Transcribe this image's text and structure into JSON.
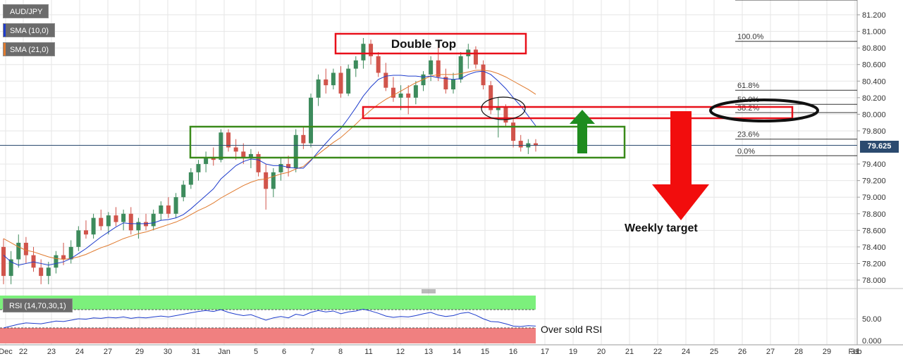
{
  "legend": {
    "symbol": "AUD/JPY",
    "sma10": "SMA (10,0)",
    "sma21": "SMA (21,0)",
    "sma10_color": "#1e3ccc",
    "sma21_color": "#e07a2e"
  },
  "current_price": "79.625",
  "annotations": {
    "double_top": "Double Top",
    "weekly_target": "Weekly target",
    "oversold": "Over sold RSI"
  },
  "fib_levels": [
    {
      "label": "100.0%",
      "value": 80.88
    },
    {
      "label": "61.8%",
      "value": 80.29
    },
    {
      "label": "50.0%",
      "value": 80.12
    },
    {
      "label": "38.2%",
      "value": 80.02
    },
    {
      "label": "23.6%",
      "value": 79.7
    },
    {
      "label": "0.0%",
      "value": 79.5
    }
  ],
  "rsi": {
    "label": "RSI (14,70,30,1)",
    "ticks": [
      "50.00",
      "0.000"
    ],
    "overbought_color": "#7cf07c",
    "oversold_color": "#f08080",
    "line_color": "#1e3ccc"
  },
  "chart_data": {
    "type": "candlestick",
    "y_axis": {
      "ticks": [
        "81.200",
        "81.000",
        "80.800",
        "80.600",
        "80.400",
        "80.200",
        "80.000",
        "79.800",
        "79.400",
        "79.200",
        "79.000",
        "78.800",
        "78.600",
        "78.400",
        "78.200",
        "78.000"
      ],
      "range": [
        77.9,
        81.4
      ]
    },
    "x_axis": {
      "ticks": [
        "Dec",
        "22",
        "23",
        "24",
        "27",
        "29",
        "30",
        "31",
        "Jan",
        "5",
        "6",
        "7",
        "8",
        "11",
        "12",
        "13",
        "14",
        "15",
        "16",
        "17",
        "19",
        "20",
        "21",
        "22",
        "24",
        "25",
        "26",
        "27",
        "28",
        "29",
        "31",
        "Feb"
      ]
    },
    "candles": [
      {
        "o": 78.4,
        "h": 78.5,
        "l": 77.95,
        "c": 78.05
      },
      {
        "o": 78.05,
        "h": 78.35,
        "l": 77.95,
        "c": 78.25
      },
      {
        "o": 78.25,
        "h": 78.55,
        "l": 78.15,
        "c": 78.45
      },
      {
        "o": 78.45,
        "h": 78.52,
        "l": 78.2,
        "c": 78.3
      },
      {
        "o": 78.3,
        "h": 78.4,
        "l": 78.1,
        "c": 78.15
      },
      {
        "o": 78.15,
        "h": 78.25,
        "l": 77.95,
        "c": 78.05
      },
      {
        "o": 78.05,
        "h": 78.22,
        "l": 77.95,
        "c": 78.15
      },
      {
        "o": 78.15,
        "h": 78.35,
        "l": 78.08,
        "c": 78.3
      },
      {
        "o": 78.3,
        "h": 78.45,
        "l": 78.18,
        "c": 78.25
      },
      {
        "o": 78.25,
        "h": 78.48,
        "l": 78.2,
        "c": 78.4
      },
      {
        "o": 78.4,
        "h": 78.65,
        "l": 78.35,
        "c": 78.6
      },
      {
        "o": 78.6,
        "h": 78.72,
        "l": 78.5,
        "c": 78.55
      },
      {
        "o": 78.55,
        "h": 78.8,
        "l": 78.5,
        "c": 78.75
      },
      {
        "o": 78.75,
        "h": 78.85,
        "l": 78.6,
        "c": 78.65
      },
      {
        "o": 78.65,
        "h": 78.82,
        "l": 78.55,
        "c": 78.78
      },
      {
        "o": 78.78,
        "h": 78.88,
        "l": 78.65,
        "c": 78.7
      },
      {
        "o": 78.7,
        "h": 78.85,
        "l": 78.6,
        "c": 78.8
      },
      {
        "o": 78.8,
        "h": 78.88,
        "l": 78.55,
        "c": 78.6
      },
      {
        "o": 78.6,
        "h": 78.75,
        "l": 78.5,
        "c": 78.7
      },
      {
        "o": 78.7,
        "h": 78.8,
        "l": 78.6,
        "c": 78.65
      },
      {
        "o": 78.65,
        "h": 78.85,
        "l": 78.6,
        "c": 78.8
      },
      {
        "o": 78.8,
        "h": 78.95,
        "l": 78.72,
        "c": 78.9
      },
      {
        "o": 78.9,
        "h": 79.0,
        "l": 78.75,
        "c": 78.8
      },
      {
        "o": 78.8,
        "h": 79.05,
        "l": 78.75,
        "c": 79.0
      },
      {
        "o": 79.0,
        "h": 79.2,
        "l": 78.95,
        "c": 79.15
      },
      {
        "o": 79.15,
        "h": 79.35,
        "l": 79.1,
        "c": 79.3
      },
      {
        "o": 79.3,
        "h": 79.45,
        "l": 79.2,
        "c": 79.4
      },
      {
        "o": 79.4,
        "h": 79.55,
        "l": 79.3,
        "c": 79.48
      },
      {
        "o": 79.48,
        "h": 79.6,
        "l": 79.38,
        "c": 79.45
      },
      {
        "o": 79.45,
        "h": 79.82,
        "l": 79.42,
        "c": 79.78
      },
      {
        "o": 79.78,
        "h": 79.82,
        "l": 79.55,
        "c": 79.6
      },
      {
        "o": 79.6,
        "h": 79.7,
        "l": 79.45,
        "c": 79.55
      },
      {
        "o": 79.55,
        "h": 79.65,
        "l": 79.4,
        "c": 79.48
      },
      {
        "o": 79.48,
        "h": 79.58,
        "l": 79.35,
        "c": 79.52
      },
      {
        "o": 79.52,
        "h": 79.55,
        "l": 79.25,
        "c": 79.3
      },
      {
        "o": 79.3,
        "h": 79.4,
        "l": 78.85,
        "c": 79.1
      },
      {
        "o": 79.1,
        "h": 79.35,
        "l": 79.0,
        "c": 79.3
      },
      {
        "o": 79.3,
        "h": 79.48,
        "l": 79.2,
        "c": 79.4
      },
      {
        "o": 79.4,
        "h": 79.5,
        "l": 79.25,
        "c": 79.35
      },
      {
        "o": 79.35,
        "h": 79.82,
        "l": 79.3,
        "c": 79.75
      },
      {
        "o": 79.75,
        "h": 79.85,
        "l": 79.58,
        "c": 79.65
      },
      {
        "o": 79.65,
        "h": 80.25,
        "l": 79.6,
        "c": 80.2
      },
      {
        "o": 80.2,
        "h": 80.48,
        "l": 80.1,
        "c": 80.42
      },
      {
        "o": 80.42,
        "h": 80.55,
        "l": 80.25,
        "c": 80.35
      },
      {
        "o": 80.35,
        "h": 80.55,
        "l": 80.3,
        "c": 80.5
      },
      {
        "o": 80.5,
        "h": 80.58,
        "l": 80.2,
        "c": 80.25
      },
      {
        "o": 80.25,
        "h": 80.6,
        "l": 80.22,
        "c": 80.55
      },
      {
        "o": 80.55,
        "h": 80.7,
        "l": 80.45,
        "c": 80.65
      },
      {
        "o": 80.65,
        "h": 80.92,
        "l": 80.55,
        "c": 80.85
      },
      {
        "o": 80.85,
        "h": 80.9,
        "l": 80.6,
        "c": 80.7
      },
      {
        "o": 80.7,
        "h": 80.75,
        "l": 80.45,
        "c": 80.5
      },
      {
        "o": 80.5,
        "h": 80.62,
        "l": 80.28,
        "c": 80.32
      },
      {
        "o": 80.32,
        "h": 80.45,
        "l": 80.15,
        "c": 80.2
      },
      {
        "o": 80.2,
        "h": 80.35,
        "l": 80.05,
        "c": 80.25
      },
      {
        "o": 80.25,
        "h": 80.35,
        "l": 80.0,
        "c": 80.2
      },
      {
        "o": 80.2,
        "h": 80.4,
        "l": 80.12,
        "c": 80.35
      },
      {
        "o": 80.35,
        "h": 80.52,
        "l": 80.28,
        "c": 80.48
      },
      {
        "o": 80.48,
        "h": 80.7,
        "l": 80.4,
        "c": 80.65
      },
      {
        "o": 80.65,
        "h": 80.82,
        "l": 80.4,
        "c": 80.45
      },
      {
        "o": 80.45,
        "h": 80.55,
        "l": 80.25,
        "c": 80.3
      },
      {
        "o": 80.3,
        "h": 80.5,
        "l": 80.25,
        "c": 80.42
      },
      {
        "o": 80.42,
        "h": 80.75,
        "l": 80.38,
        "c": 80.7
      },
      {
        "o": 80.7,
        "h": 80.85,
        "l": 80.55,
        "c": 80.78
      },
      {
        "o": 80.78,
        "h": 80.82,
        "l": 80.55,
        "c": 80.6
      },
      {
        "o": 80.6,
        "h": 80.65,
        "l": 80.3,
        "c": 80.35
      },
      {
        "o": 80.35,
        "h": 80.4,
        "l": 80.0,
        "c": 80.05
      },
      {
        "o": 80.05,
        "h": 80.2,
        "l": 79.72,
        "c": 80.08
      },
      {
        "o": 80.08,
        "h": 80.12,
        "l": 79.85,
        "c": 79.9
      },
      {
        "o": 79.9,
        "h": 79.95,
        "l": 79.6,
        "c": 79.68
      },
      {
        "o": 79.68,
        "h": 79.75,
        "l": 79.55,
        "c": 79.6
      },
      {
        "o": 79.6,
        "h": 79.7,
        "l": 79.52,
        "c": 79.65
      },
      {
        "o": 79.65,
        "h": 79.7,
        "l": 79.55,
        "c": 79.62
      }
    ],
    "sma10": [
      78.3,
      78.22,
      78.18,
      78.2,
      78.22,
      78.2,
      78.18,
      78.2,
      78.22,
      78.26,
      78.32,
      78.38,
      78.45,
      78.52,
      78.58,
      78.64,
      78.69,
      78.68,
      78.68,
      78.68,
      78.69,
      78.72,
      78.73,
      78.75,
      78.79,
      78.86,
      78.94,
      79.02,
      79.1,
      79.22,
      79.3,
      79.38,
      79.43,
      79.46,
      79.45,
      79.4,
      79.38,
      79.38,
      79.36,
      79.35,
      79.35,
      79.44,
      79.55,
      79.65,
      79.75,
      79.83,
      79.95,
      80.08,
      80.22,
      80.33,
      80.42,
      80.46,
      80.47,
      80.47,
      80.46,
      80.46,
      80.45,
      80.46,
      80.44,
      80.43,
      80.42,
      80.43,
      80.48,
      80.51,
      80.52,
      80.48,
      80.4,
      80.31,
      80.2,
      80.1,
      79.98,
      79.86
    ],
    "sma21": [
      78.5,
      78.45,
      78.4,
      78.36,
      78.34,
      78.31,
      78.28,
      78.26,
      78.25,
      78.26,
      78.28,
      78.31,
      78.35,
      78.39,
      78.42,
      78.46,
      78.5,
      78.53,
      78.56,
      78.58,
      78.61,
      78.64,
      78.67,
      78.7,
      78.74,
      78.79,
      78.84,
      78.88,
      78.93,
      78.99,
      79.04,
      79.09,
      79.14,
      79.18,
      79.21,
      79.22,
      79.25,
      79.28,
      79.3,
      79.34,
      79.37,
      79.45,
      79.52,
      79.59,
      79.66,
      79.72,
      79.8,
      79.88,
      79.97,
      80.05,
      80.12,
      80.18,
      80.23,
      80.28,
      80.33,
      80.38,
      80.42,
      80.46,
      80.48,
      80.48,
      80.48,
      80.49,
      80.51,
      80.53,
      80.53,
      80.52,
      80.49,
      80.45,
      80.4,
      80.35,
      80.3,
      80.24
    ],
    "rsi_values": [
      30,
      34,
      38,
      41,
      40,
      39,
      42,
      45,
      44,
      47,
      50,
      49,
      52,
      51,
      53,
      52,
      54,
      51,
      53,
      52,
      54,
      56,
      54,
      57,
      60,
      63,
      66,
      68,
      66,
      70,
      64,
      60,
      57,
      59,
      53,
      47,
      52,
      55,
      52,
      60,
      57,
      64,
      68,
      65,
      67,
      61,
      65,
      67,
      71,
      67,
      62,
      56,
      53,
      55,
      54,
      57,
      61,
      64,
      58,
      55,
      57,
      62,
      64,
      58,
      50,
      44,
      43,
      39,
      34,
      33,
      35,
      34
    ]
  }
}
